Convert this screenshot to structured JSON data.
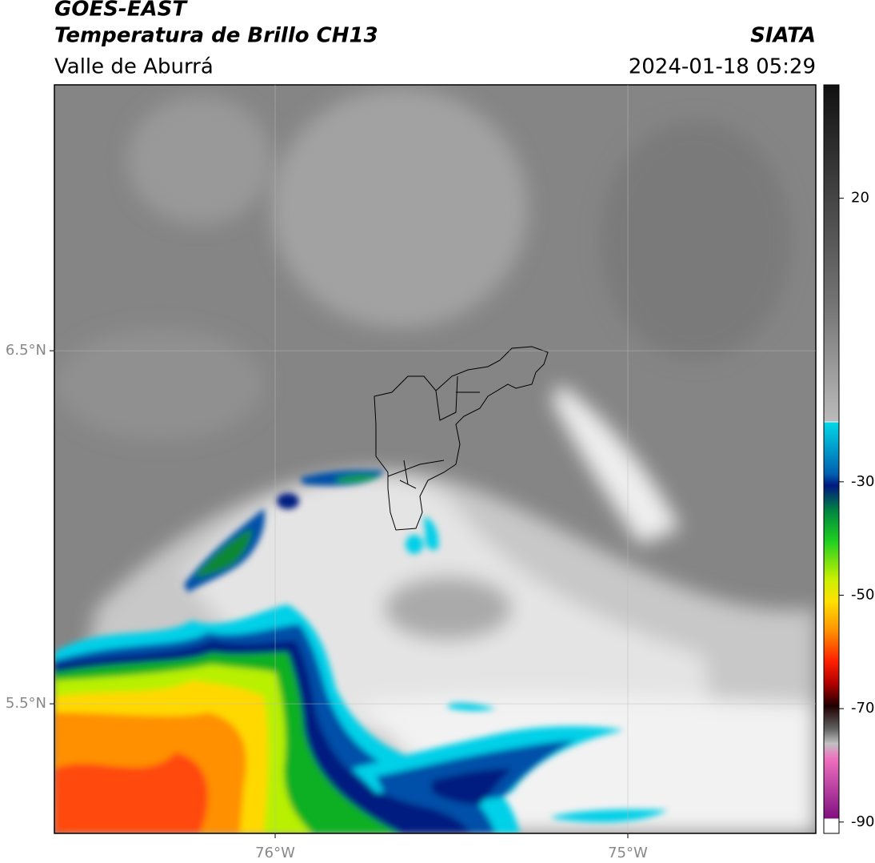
{
  "header": {
    "satellite": "GOES-EAST",
    "product": "Temperatura de Brillo CH13",
    "region": "Valle de Aburrá",
    "source": "SIATA",
    "datetime": "2024-01-18 05:29"
  },
  "map": {
    "xlim": [
      -76.626,
      -74.467
    ],
    "ylim": [
      5.133,
      7.253
    ],
    "xticks": [
      {
        "value": -76,
        "label": "76°W"
      },
      {
        "value": -75,
        "label": "75°W"
      }
    ],
    "yticks": [
      {
        "value": 6.5,
        "label": "6.5°N"
      },
      {
        "value": 5.5,
        "label": "5.5°N"
      }
    ]
  },
  "colorbar": {
    "lim": [
      -92,
      40
    ],
    "ticks": [
      20,
      -30,
      -50,
      -70,
      -90
    ]
  }
}
